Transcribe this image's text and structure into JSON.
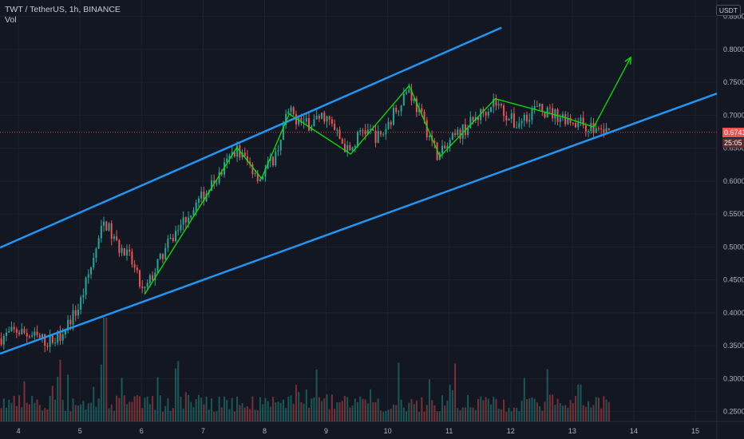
{
  "header": {
    "symbol_line": "TWT / TetherUS, 1h, BINANCE",
    "indicator": "Vol"
  },
  "currency_button": "USDT",
  "price_axis": {
    "ticks": [
      "0.8500",
      "0.8000",
      "0.7500",
      "0.7000",
      "0.6500",
      "0.6000",
      "0.5500",
      "0.5000",
      "0.4500",
      "0.4000",
      "0.3500",
      "0.3000",
      "0.2500"
    ],
    "current_price": "0.6741",
    "countdown": "25:05"
  },
  "time_axis": {
    "ticks": [
      "4",
      "5",
      "6",
      "7",
      "8",
      "9",
      "10",
      "11",
      "12",
      "13",
      "14",
      "15"
    ]
  },
  "colors": {
    "up": "#26a69a",
    "down": "#ef5350",
    "channel": "#2196f3",
    "path": "#00e600",
    "bg": "#131722",
    "grid": "#1e222d"
  },
  "chart_data": {
    "type": "candlestick",
    "x_axis": "day of month",
    "y_range": [
      0.235,
      0.875
    ],
    "x_range": [
      3.7,
      15.35
    ],
    "last_price": 0.6741,
    "channel": {
      "upper": [
        {
          "x": 3.7,
          "y": 0.499
        },
        {
          "x": 11.85,
          "y": 0.833
        }
      ],
      "lower": [
        {
          "x": 3.7,
          "y": 0.338
        },
        {
          "x": 15.35,
          "y": 0.733
        }
      ]
    },
    "zigzag": [
      {
        "x": 6.05,
        "y": 0.428
      },
      {
        "x": 7.55,
        "y": 0.651
      },
      {
        "x": 7.95,
        "y": 0.604
      },
      {
        "x": 8.4,
        "y": 0.702
      },
      {
        "x": 9.4,
        "y": 0.641
      },
      {
        "x": 10.35,
        "y": 0.745
      },
      {
        "x": 10.85,
        "y": 0.637
      },
      {
        "x": 11.75,
        "y": 0.725
      },
      {
        "x": 12.9,
        "y": 0.696
      },
      {
        "x": 13.35,
        "y": 0.682
      },
      {
        "x": 13.95,
        "y": 0.788
      }
    ],
    "price_path": [
      [
        3.7,
        0.361
      ],
      [
        4.0,
        0.373
      ],
      [
        4.5,
        0.356
      ],
      [
        4.65,
        0.362
      ],
      [
        5.0,
        0.408
      ],
      [
        5.2,
        0.47
      ],
      [
        5.42,
        0.54
      ],
      [
        5.6,
        0.505
      ],
      [
        5.85,
        0.48
      ],
      [
        6.05,
        0.428
      ],
      [
        6.4,
        0.495
      ],
      [
        6.7,
        0.54
      ],
      [
        7.0,
        0.575
      ],
      [
        7.3,
        0.61
      ],
      [
        7.55,
        0.65
      ],
      [
        7.95,
        0.605
      ],
      [
        8.2,
        0.64
      ],
      [
        8.4,
        0.705
      ],
      [
        8.7,
        0.685
      ],
      [
        9.0,
        0.7
      ],
      [
        9.4,
        0.641
      ],
      [
        9.6,
        0.68
      ],
      [
        9.9,
        0.665
      ],
      [
        10.1,
        0.7
      ],
      [
        10.35,
        0.742
      ],
      [
        10.6,
        0.69
      ],
      [
        10.85,
        0.637
      ],
      [
        11.1,
        0.665
      ],
      [
        11.4,
        0.69
      ],
      [
        11.75,
        0.722
      ],
      [
        12.1,
        0.685
      ],
      [
        12.4,
        0.71
      ],
      [
        12.9,
        0.697
      ],
      [
        13.35,
        0.68
      ],
      [
        13.6,
        0.674
      ]
    ],
    "volume_note": "relative volume bars at bottom"
  }
}
